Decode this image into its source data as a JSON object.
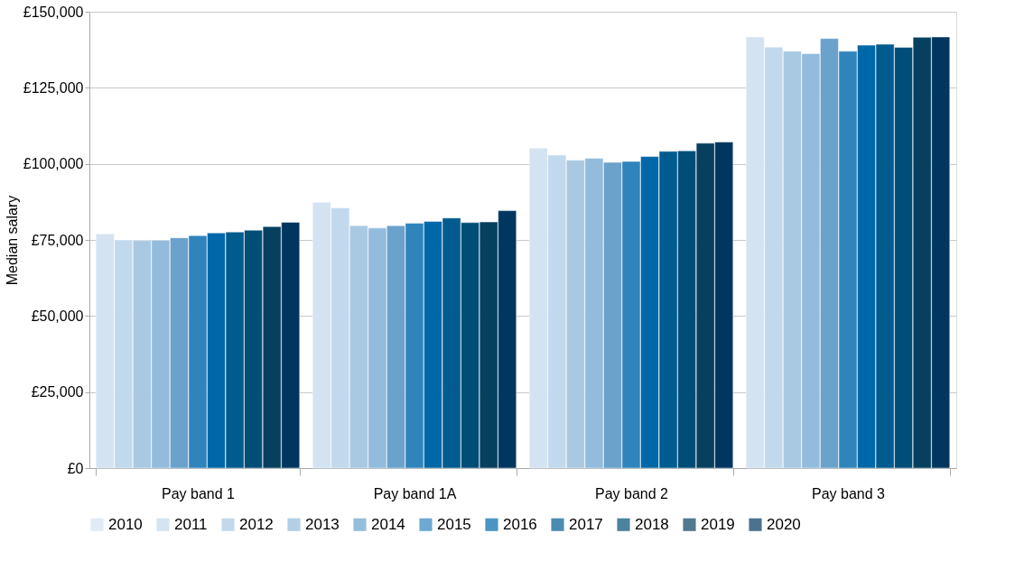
{
  "chart_data": {
    "type": "bar",
    "ylabel": "Median salary",
    "categories": [
      "Pay band 1",
      "Pay band 1A",
      "Pay band 2",
      "Pay band 3"
    ],
    "series": [
      {
        "name": "2010",
        "color": "#d4e3f1",
        "values": [
          77000,
          87400,
          105200,
          141700
        ]
      },
      {
        "name": "2011",
        "color": "#c2d9ed",
        "values": [
          75000,
          85500,
          102900,
          138400
        ]
      },
      {
        "name": "2012",
        "color": "#a9c9e3",
        "values": [
          74800,
          79700,
          101200,
          137000
        ]
      },
      {
        "name": "2013",
        "color": "#92bbdc",
        "values": [
          74900,
          78900,
          101800,
          136200
        ]
      },
      {
        "name": "2014",
        "color": "#6aa2cc",
        "values": [
          75700,
          79700,
          100500,
          141200
        ]
      },
      {
        "name": "2015",
        "color": "#2f84bc",
        "values": [
          76400,
          80500,
          100800,
          137000
        ]
      },
      {
        "name": "2016",
        "color": "#0068a9",
        "values": [
          77300,
          81100,
          102400,
          139000
        ]
      },
      {
        "name": "2017",
        "color": "#005b8f",
        "values": [
          77600,
          82200,
          104100,
          139300
        ]
      },
      {
        "name": "2018",
        "color": "#004e78",
        "values": [
          78200,
          80700,
          104300,
          138300
        ]
      },
      {
        "name": "2019",
        "color": "#07405f",
        "values": [
          79400,
          80900,
          106800,
          141600
        ]
      },
      {
        "name": "2020",
        "color": "#003660",
        "values": [
          80800,
          84600,
          107200,
          141700
        ]
      }
    ],
    "ylim": [
      0,
      150000
    ],
    "yticks": [
      {
        "value": 0,
        "label": "£0"
      },
      {
        "value": 25000,
        "label": "£25,000"
      },
      {
        "value": 50000,
        "label": "£50,000"
      },
      {
        "value": 75000,
        "label": "£75,000"
      },
      {
        "value": 100000,
        "label": "£100,000"
      },
      {
        "value": 125000,
        "label": "£125,000"
      },
      {
        "value": 150000,
        "label": "£150,000"
      }
    ],
    "grid": "y",
    "legend": "bottom"
  }
}
